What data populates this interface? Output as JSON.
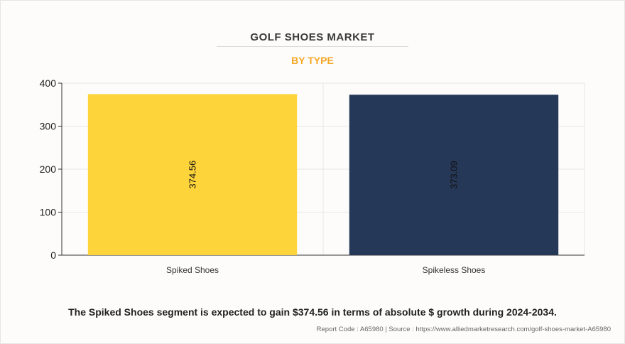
{
  "title": "GOLF SHOES MARKET",
  "subtitle": "BY TYPE",
  "caption": "The Spiked Shoes segment is expected to gain $374.56 in terms of absolute $ growth during 2024-2034.",
  "source": "Report Code : A65980  |  Source : https://www.alliedmarketresearch.com/golf-shoes-market-A65980",
  "chart_data": {
    "type": "bar",
    "categories": [
      "Spiked Shoes",
      "Spikeless Shoes"
    ],
    "values": [
      374.56,
      373.09
    ],
    "data_labels": [
      "374.56",
      "373.09"
    ],
    "colors": [
      "#fdd43a",
      "#263858"
    ],
    "ylim": [
      0,
      400
    ],
    "yticks": [
      0,
      100,
      200,
      300,
      400
    ],
    "grid": true,
    "title": "GOLF SHOES MARKET",
    "subtitle": "BY TYPE"
  }
}
